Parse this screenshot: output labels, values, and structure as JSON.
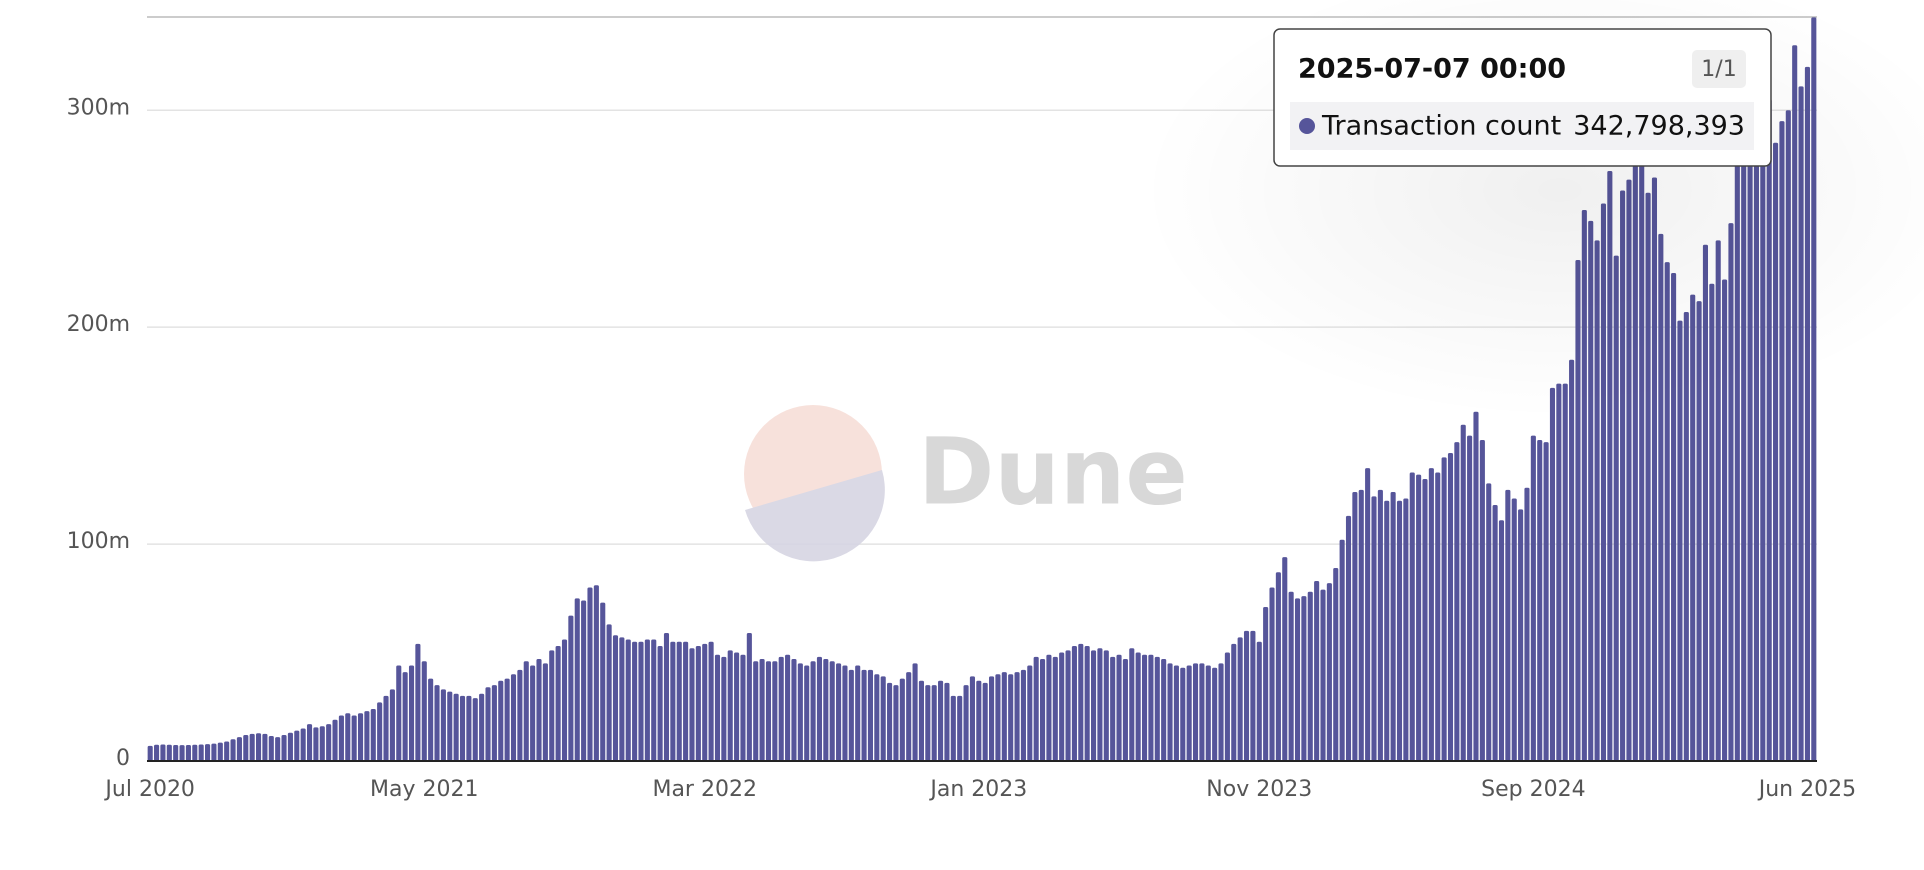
{
  "chart_data": {
    "type": "bar",
    "watermark": "Dune",
    "series": [
      {
        "name": "Transaction count",
        "color": "#56559a",
        "values": [
          7,
          7.5,
          7.6,
          7.5,
          7.4,
          7.3,
          7.4,
          7.5,
          7.6,
          7.8,
          8,
          8.5,
          9,
          10,
          11,
          12,
          12.5,
          12.8,
          12.5,
          11.5,
          11,
          12,
          13,
          14,
          15,
          17,
          15.5,
          16,
          17,
          19,
          21,
          22,
          21,
          22,
          23,
          24,
          27,
          30,
          33,
          44,
          41,
          44,
          54,
          46,
          38,
          35,
          33,
          32,
          31,
          30,
          30,
          29,
          31,
          34,
          35,
          37,
          38,
          40,
          42,
          46,
          44,
          47,
          45,
          51,
          53,
          56,
          67,
          75,
          74,
          80,
          81,
          73,
          63,
          58,
          57,
          56,
          55,
          55,
          56,
          56,
          53,
          59,
          55,
          55,
          55,
          52,
          53,
          54,
          55,
          49,
          48,
          51,
          50,
          49,
          59,
          46,
          47,
          46,
          46,
          48,
          49,
          47,
          45,
          44,
          46,
          48,
          47,
          46,
          45,
          44,
          42,
          44,
          42,
          42,
          40,
          39,
          36,
          35,
          38,
          41,
          45,
          37,
          35,
          35,
          37,
          36,
          30,
          30,
          35,
          39,
          37,
          36,
          39,
          40,
          41,
          40,
          41,
          42,
          44,
          48,
          47,
          49,
          48,
          50,
          51,
          53,
          54,
          53,
          51,
          52,
          51,
          48,
          49,
          47,
          52,
          50,
          49,
          49,
          48,
          47,
          45,
          44,
          43,
          44,
          45,
          45,
          44,
          43,
          45,
          50,
          54,
          57,
          60,
          60,
          55,
          71,
          80,
          87,
          94,
          78,
          75,
          76,
          78,
          83,
          79,
          82,
          89,
          102,
          113,
          124,
          125,
          135,
          122,
          125,
          120,
          124,
          120,
          121,
          133,
          132,
          130,
          135,
          133,
          140,
          142,
          147,
          155,
          150,
          161,
          148,
          128,
          118,
          111,
          125,
          121,
          116,
          126,
          150,
          148,
          147,
          172,
          174,
          174,
          185,
          231,
          254,
          249,
          240,
          257,
          272,
          233,
          263,
          268,
          290,
          275,
          262,
          269,
          243,
          230,
          225,
          203,
          207,
          215,
          212,
          238,
          220,
          240,
          222,
          248,
          275,
          290,
          300,
          298,
          312,
          305,
          285,
          295,
          300,
          330,
          311,
          320,
          342.798393
        ]
      }
    ],
    "categories": [
      "Jul 2020",
      null,
      null,
      null,
      null,
      null,
      null,
      null,
      null,
      null,
      null,
      null,
      null,
      null,
      null,
      null,
      null,
      null,
      null,
      null,
      null,
      null,
      null,
      null,
      null,
      null,
      null,
      null,
      null,
      null,
      null,
      null,
      null,
      null,
      null,
      null,
      null,
      null,
      null,
      null,
      null,
      null,
      null,
      "May 2021",
      null,
      null,
      null,
      null,
      null,
      null,
      null,
      null,
      null,
      null,
      null,
      null,
      null,
      null,
      null,
      null,
      null,
      null,
      null,
      null,
      null,
      null,
      null,
      null,
      null,
      null,
      null,
      null,
      null,
      null,
      null,
      null,
      null,
      null,
      null,
      null,
      null,
      null,
      null,
      null,
      null,
      null,
      null,
      "Mar 2022",
      null,
      null,
      null,
      null,
      null,
      null,
      null,
      null,
      null,
      null,
      null,
      null,
      null,
      null,
      null,
      null,
      null,
      null,
      null,
      null,
      null,
      null,
      null,
      null,
      null,
      null,
      null,
      null,
      null,
      null,
      null,
      null,
      null,
      null,
      null,
      null,
      null,
      null,
      null,
      null,
      null,
      null,
      "Jan 2023",
      null,
      null,
      null,
      null,
      null,
      null,
      null,
      null,
      null,
      null,
      null,
      null,
      null,
      null,
      null,
      null,
      null,
      null,
      null,
      null,
      null,
      null,
      null,
      null,
      null,
      null,
      null,
      null,
      null,
      null,
      null,
      null,
      null,
      null,
      null,
      null,
      null,
      null,
      null,
      null,
      null,
      null,
      null,
      "Nov 2023",
      null,
      null,
      null,
      null,
      null,
      null,
      null,
      null,
      null,
      null,
      null,
      null,
      null,
      null,
      null,
      null,
      null,
      null,
      null,
      null,
      null,
      null,
      null,
      null,
      null,
      null,
      null,
      null,
      null,
      null,
      null,
      null,
      null,
      null,
      null,
      null,
      null,
      null,
      null,
      null,
      null,
      null,
      "Sep 2024",
      null,
      null,
      null,
      null,
      null,
      null,
      null,
      null,
      null,
      null,
      null,
      null,
      null,
      null,
      null,
      null,
      null,
      null,
      null,
      null,
      null,
      null,
      null,
      null,
      null,
      null,
      null,
      null,
      null,
      null,
      null,
      null,
      null,
      null,
      null,
      null,
      null,
      null,
      null,
      null,
      null,
      null,
      "Jun 2025",
      null
    ],
    "ylim": [
      0,
      343
    ],
    "yticks": [
      {
        "value": 0,
        "label": "0"
      },
      {
        "value": 100,
        "label": "100m"
      },
      {
        "value": 200,
        "label": "200m"
      },
      {
        "value": 300,
        "label": "300m"
      }
    ],
    "grid": true,
    "tooltip": {
      "title": "2025-07-07 00:00",
      "page": "1/1",
      "value": "342,798,393"
    }
  }
}
